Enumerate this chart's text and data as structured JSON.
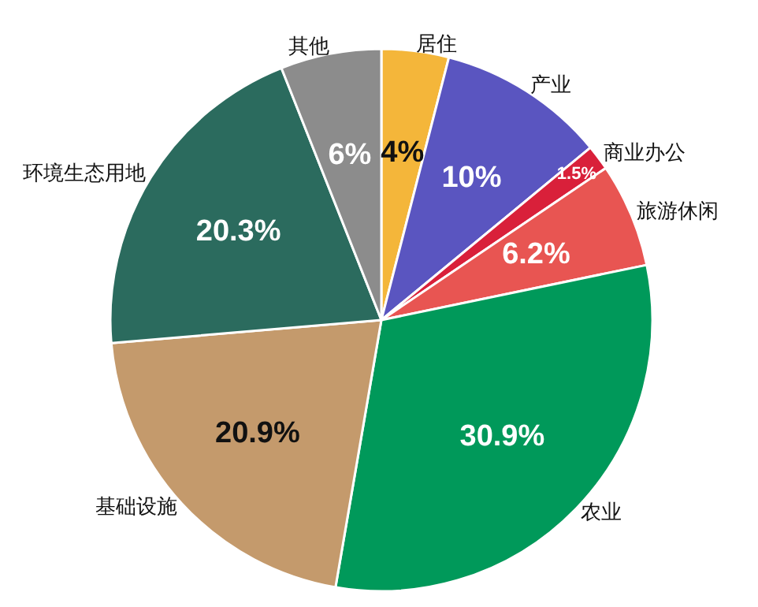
{
  "chart_data": {
    "type": "pie",
    "categories": [
      "居住",
      "产业",
      "商业办公",
      "旅游休闲",
      "农业",
      "基础设施",
      "环境生态用地",
      "其他"
    ],
    "values": [
      4,
      10,
      1.5,
      6.2,
      30.9,
      20.9,
      20.3,
      6
    ],
    "value_labels": [
      "4%",
      "10%",
      "1.5%",
      "6.2%",
      "30.9%",
      "20.9%",
      "20.3%",
      "6%"
    ],
    "colors": [
      "#f4b63a",
      "#5a55c0",
      "#d9203a",
      "#e85552",
      "#00995a",
      "#c49a6c",
      "#2b6b5e",
      "#8c8c8c"
    ],
    "legend": false
  }
}
